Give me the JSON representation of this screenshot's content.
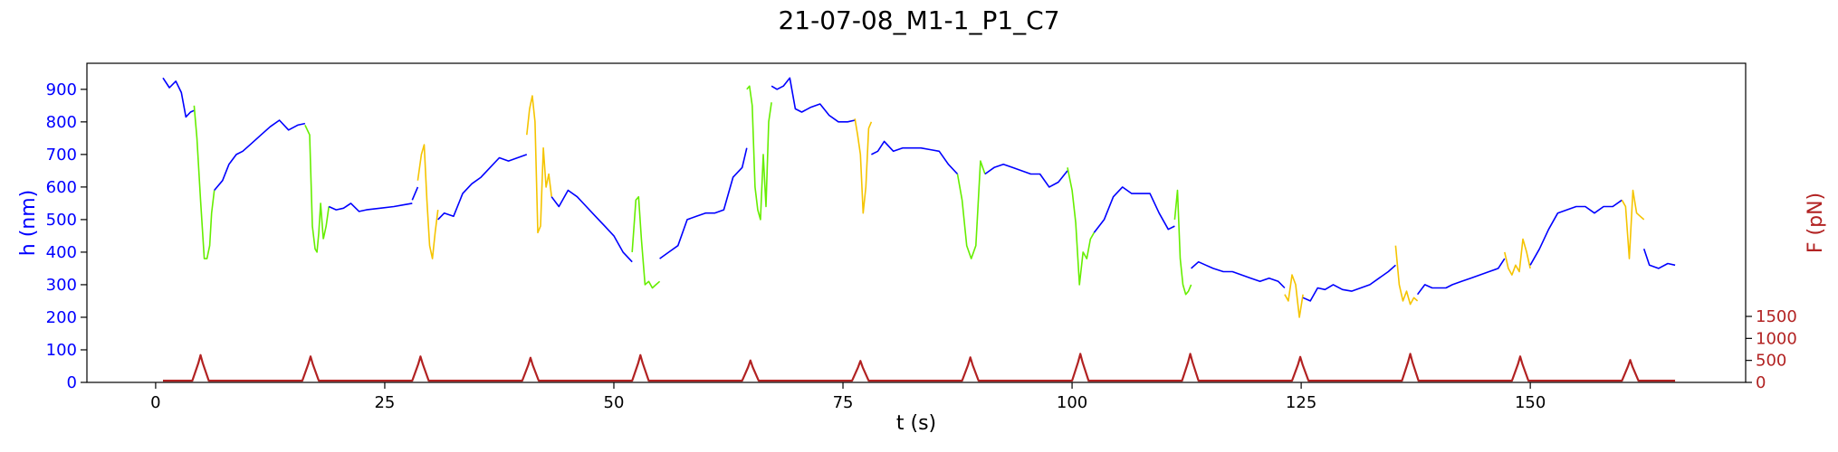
{
  "chart_data": {
    "type": "line",
    "title": "21-07-08_M1-1_P1_C7",
    "xlabel": "t (s)",
    "ylabel_left": "h (nm)",
    "ylabel_right": "F (pN)",
    "xlim": [
      -7.5,
      173.5
    ],
    "ylim_left": [
      0,
      980
    ],
    "right_axis_ticks": [
      0,
      500,
      1000,
      1500
    ],
    "x_ticks": [
      0,
      25,
      50,
      75,
      100,
      125,
      150
    ],
    "y_ticks_left": [
      0,
      100,
      200,
      300,
      400,
      500,
      600,
      700,
      800,
      900
    ],
    "grid": false,
    "colors": {
      "height": "#0000ff",
      "force": "#b22222",
      "segment_green": "#66ee00",
      "segment_yellow": "#f5c400",
      "left_axis_text": "#0000ff",
      "right_axis_text": "#b22222"
    },
    "series": [
      {
        "role": "height",
        "segments": [
          {
            "color": "blue",
            "x": [
              0.8,
              1.5,
              2.2,
              2.8,
              3.3,
              3.8,
              4.2
            ],
            "y": [
              935,
              905,
              925,
              890,
              815,
              830,
              835
            ]
          },
          {
            "color": "green",
            "x": [
              4.2,
              4.5,
              4.9,
              5.3,
              5.6,
              5.9,
              6.1,
              6.4
            ],
            "y": [
              850,
              750,
              560,
              380,
              380,
              420,
              520,
              590
            ]
          },
          {
            "color": "blue",
            "x": [
              6.4,
              7.3,
              8.0,
              8.8,
              9.5,
              10.5,
              11.5,
              12.5,
              13.5,
              14.5,
              15.5,
              16.3
            ],
            "y": [
              590,
              620,
              670,
              700,
              710,
              735,
              760,
              785,
              805,
              775,
              790,
              795
            ]
          },
          {
            "color": "green",
            "x": [
              16.3,
              16.8,
              17.1,
              17.4,
              17.6,
              17.8,
              18.0,
              18.3
            ],
            "y": [
              790,
              760,
              480,
              410,
              400,
              460,
              550,
              440
            ]
          },
          {
            "color": "green",
            "x": [
              18.3,
              18.6,
              18.9
            ],
            "y": [
              440,
              480,
              540
            ]
          },
          {
            "color": "blue",
            "x": [
              18.9,
              19.7,
              20.5,
              21.3,
              22.2,
              23.0,
              24.5,
              26.0,
              27.0,
              28.0
            ],
            "y": [
              540,
              530,
              535,
              550,
              525,
              530,
              535,
              540,
              545,
              550
            ]
          },
          {
            "color": "blue",
            "x": [
              28.0,
              28.6
            ],
            "y": [
              560,
              600
            ]
          },
          {
            "color": "yellow",
            "x": [
              28.6,
              29.0,
              29.3,
              29.6,
              29.9,
              30.2,
              30.5,
              30.8
            ],
            "y": [
              620,
              700,
              730,
              560,
              420,
              380,
              460,
              530
            ]
          },
          {
            "color": "blue",
            "x": [
              30.8,
              31.5,
              32.5,
              33.5,
              34.5,
              35.5,
              36.5,
              37.5,
              38.5,
              39.5,
              40.5
            ],
            "y": [
              500,
              520,
              510,
              580,
              610,
              630,
              660,
              690,
              680,
              690,
              700
            ]
          },
          {
            "color": "yellow",
            "x": [
              40.5,
              40.8,
              41.1,
              41.4,
              41.7,
              42.0,
              42.3,
              42.6,
              42.9,
              43.2
            ],
            "y": [
              760,
              840,
              880,
              800,
              460,
              480,
              720,
              600,
              640,
              570
            ]
          },
          {
            "color": "blue",
            "x": [
              43.2,
              44.0,
              45.0,
              46.0,
              47.0,
              48.0,
              49.0,
              50.0,
              51.0,
              52.0
            ],
            "y": [
              570,
              540,
              590,
              570,
              540,
              510,
              480,
              450,
              400,
              370
            ]
          },
          {
            "color": "green",
            "x": [
              52.0,
              52.4,
              52.7,
              53.0,
              53.4,
              53.8,
              54.2,
              54.6,
              55.0
            ],
            "y": [
              400,
              560,
              570,
              440,
              300,
              310,
              290,
              300,
              310
            ]
          },
          {
            "color": "blue",
            "x": [
              55.0,
              56.0,
              57.0,
              58.0,
              59.0,
              60.0,
              61.0,
              62.0,
              63.0,
              64.0,
              64.5
            ],
            "y": [
              380,
              400,
              420,
              500,
              510,
              520,
              520,
              530,
              630,
              660,
              720
            ]
          },
          {
            "color": "green",
            "x": [
              64.5,
              64.8,
              65.1,
              65.4,
              65.7,
              66.0,
              66.3,
              66.6,
              66.9,
              67.2
            ],
            "y": [
              900,
              910,
              850,
              600,
              530,
              500,
              700,
              540,
              800,
              860
            ]
          },
          {
            "color": "blue",
            "x": [
              67.2,
              67.8,
              68.5,
              69.2,
              69.8,
              70.5,
              71.5,
              72.5,
              73.5,
              74.5,
              75.5,
              76.3
            ],
            "y": [
              910,
              900,
              910,
              935,
              840,
              830,
              845,
              855,
              820,
              800,
              800,
              805
            ]
          },
          {
            "color": "yellow",
            "x": [
              76.3,
              76.6,
              76.9,
              77.2,
              77.5,
              77.8,
              78.1
            ],
            "y": [
              810,
              760,
              700,
              520,
              600,
              780,
              800
            ]
          },
          {
            "color": "blue",
            "x": [
              78.1,
              78.8,
              79.5,
              80.5,
              81.5,
              82.5,
              83.5,
              84.5,
              85.5,
              86.5,
              87.5
            ],
            "y": [
              700,
              710,
              740,
              710,
              720,
              720,
              720,
              715,
              710,
              670,
              640
            ]
          },
          {
            "color": "green",
            "x": [
              87.5,
              88.0,
              88.5,
              89.0,
              89.5,
              90.0,
              90.5
            ],
            "y": [
              640,
              560,
              420,
              380,
              420,
              680,
              640
            ]
          },
          {
            "color": "blue",
            "x": [
              90.5,
              91.5,
              92.5,
              93.5,
              94.5,
              95.5,
              96.5,
              97.5,
              98.5,
              99.5
            ],
            "y": [
              640,
              660,
              670,
              660,
              650,
              640,
              640,
              600,
              615,
              650
            ]
          },
          {
            "color": "green",
            "x": [
              99.5,
              100.0,
              100.4,
              100.8,
              101.2,
              101.6,
              102.0,
              102.4
            ],
            "y": [
              660,
              590,
              490,
              300,
              400,
              380,
              440,
              460
            ]
          },
          {
            "color": "blue",
            "x": [
              102.4,
              103.5,
              104.5,
              105.5,
              106.5,
              107.5,
              108.5,
              109.5,
              110.5,
              111.2
            ],
            "y": [
              460,
              500,
              570,
              600,
              580,
              580,
              580,
              520,
              470,
              480
            ]
          },
          {
            "color": "green",
            "x": [
              111.2,
              111.5,
              111.8,
              112.1,
              112.4,
              112.7,
              113.0
            ],
            "y": [
              500,
              590,
              380,
              300,
              270,
              280,
              300
            ]
          },
          {
            "color": "blue",
            "x": [
              113.0,
              113.8,
              114.6,
              115.4,
              116.5,
              117.5,
              118.5,
              119.5,
              120.5,
              121.5,
              122.5,
              123.2
            ],
            "y": [
              350,
              370,
              360,
              350,
              340,
              340,
              330,
              320,
              310,
              320,
              310,
              290
            ]
          },
          {
            "color": "yellow",
            "x": [
              123.2,
              123.6,
              124.0,
              124.4,
              124.8,
              125.2
            ],
            "y": [
              270,
              250,
              330,
              300,
              200,
              270
            ]
          },
          {
            "color": "blue",
            "x": [
              125.2,
              126.0,
              126.8,
              127.6,
              128.5,
              129.5,
              130.5,
              131.5,
              132.5,
              133.5,
              134.5,
              135.3
            ],
            "y": [
              260,
              250,
              290,
              285,
              300,
              285,
              280,
              290,
              300,
              320,
              340,
              360
            ]
          },
          {
            "color": "yellow",
            "x": [
              135.3,
              135.7,
              136.1,
              136.5,
              136.9,
              137.3,
              137.7
            ],
            "y": [
              420,
              300,
              250,
              280,
              240,
              260,
              250
            ]
          },
          {
            "color": "blue",
            "x": [
              137.7,
              138.5,
              139.3,
              140.0,
              140.8,
              141.5,
              142.5,
              143.5,
              144.5,
              145.5,
              146.5,
              147.2
            ],
            "y": [
              270,
              300,
              290,
              290,
              290,
              300,
              310,
              320,
              330,
              340,
              350,
              380
            ]
          },
          {
            "color": "yellow",
            "x": [
              147.2,
              147.6,
              148.0,
              148.4,
              148.8,
              149.2,
              149.6,
              150.0
            ],
            "y": [
              400,
              350,
              330,
              360,
              340,
              440,
              400,
              350
            ]
          },
          {
            "color": "blue",
            "x": [
              150.0,
              151.0,
              152.0,
              153.0,
              154.0,
              155.0,
              156.0,
              157.0,
              158.0,
              159.0,
              160.0
            ],
            "y": [
              360,
              410,
              470,
              520,
              530,
              540,
              540,
              520,
              540,
              540,
              560
            ]
          },
          {
            "color": "yellow",
            "x": [
              160.0,
              160.4,
              160.8,
              161.2,
              161.6,
              162.0,
              162.4
            ],
            "y": [
              560,
              540,
              380,
              590,
              520,
              510,
              500
            ]
          },
          {
            "color": "blue",
            "x": [
              162.4,
              163.0,
              164.0,
              165.0,
              165.8
            ],
            "y": [
              410,
              360,
              350,
              365,
              360
            ]
          }
        ]
      },
      {
        "role": "force",
        "baseline_pN": 40,
        "x_start": 0.8,
        "x_end": 165.8,
        "peaks": [
          {
            "t": 4.9,
            "f": 620
          },
          {
            "t": 16.9,
            "f": 590
          },
          {
            "t": 28.9,
            "f": 590
          },
          {
            "t": 40.9,
            "f": 560
          },
          {
            "t": 52.9,
            "f": 620
          },
          {
            "t": 64.9,
            "f": 500
          },
          {
            "t": 76.9,
            "f": 490
          },
          {
            "t": 88.9,
            "f": 570
          },
          {
            "t": 100.9,
            "f": 650
          },
          {
            "t": 112.9,
            "f": 650
          },
          {
            "t": 124.9,
            "f": 580
          },
          {
            "t": 136.9,
            "f": 650
          },
          {
            "t": 148.9,
            "f": 590
          },
          {
            "t": 160.9,
            "f": 510
          }
        ],
        "peak_half_width_s": 0.9
      }
    ]
  }
}
